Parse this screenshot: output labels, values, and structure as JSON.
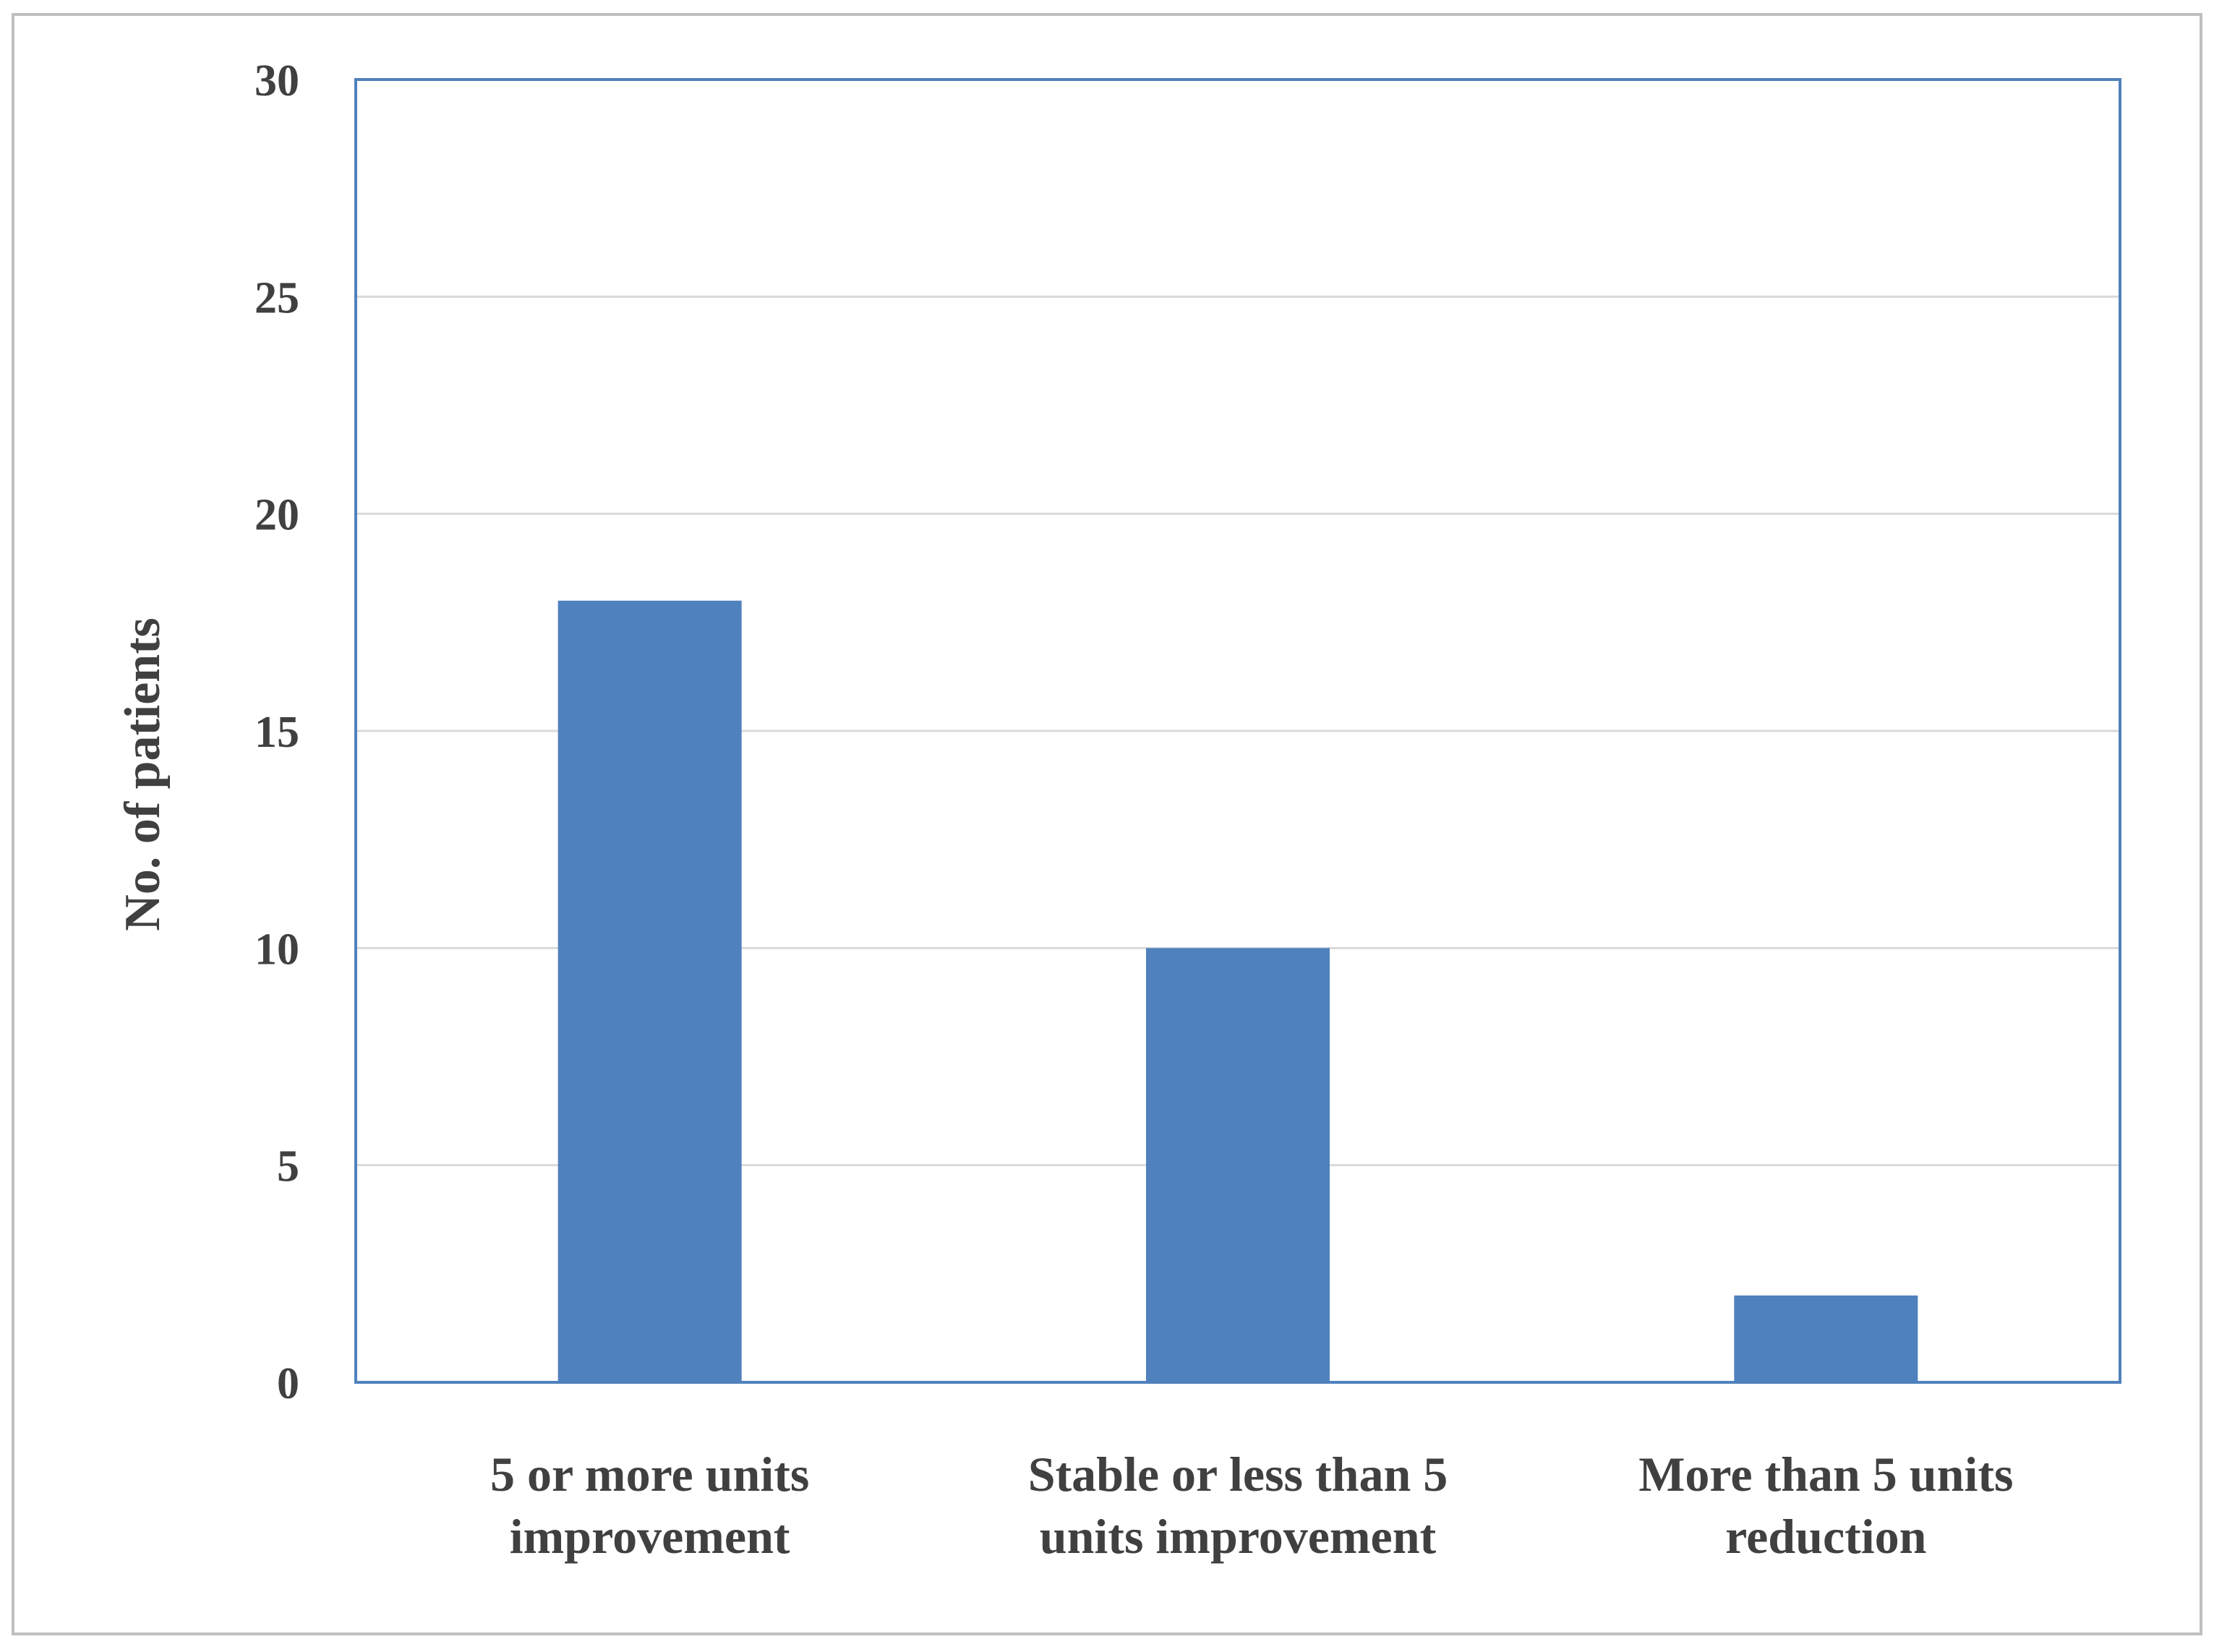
{
  "colors": {
    "bar": "#4F81BD",
    "plot_border": "#4F81BD",
    "gridline": "#D9D9D9",
    "outer_border": "#BFBFBF",
    "text": "#404040"
  },
  "chart_data": {
    "type": "bar",
    "title": "",
    "xlabel": "",
    "ylabel": "No. of patients",
    "categories": [
      [
        "5 or more units",
        "improvement"
      ],
      [
        "Stable or less than 5",
        "units improvement"
      ],
      [
        "More than 5 units",
        "reduction"
      ]
    ],
    "values": [
      18,
      10,
      2
    ],
    "ylim": [
      0,
      30
    ],
    "yticks": [
      "0",
      "5",
      "10",
      "15",
      "20",
      "25",
      "30"
    ],
    "grid": true,
    "legend": "none"
  }
}
